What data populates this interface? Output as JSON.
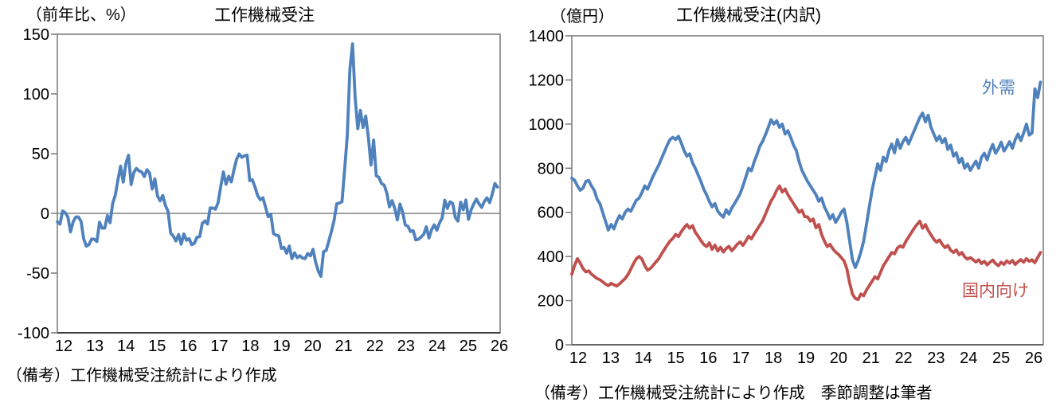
{
  "figure": {
    "background": "#ffffff"
  },
  "chart_data": [
    {
      "type": "line",
      "title": "工作機械受注",
      "unit_label": "（前年比、%）",
      "footnote": "（備考）工作機械受注統計により作成",
      "x_tick_labels": [
        "12",
        "13",
        "14",
        "15",
        "16",
        "17",
        "18",
        "19",
        "20",
        "21",
        "22",
        "23",
        "24",
        "25",
        "26"
      ],
      "x_frequency": "monthly",
      "x_range": [
        "2012-01",
        "2025-12"
      ],
      "ylim": [
        -100,
        150
      ],
      "y_ticks": [
        150,
        100,
        50,
        0,
        -50,
        -100
      ],
      "zero_line": true,
      "grid": false,
      "legend_position": "none",
      "axis_color": "#808080",
      "series": [
        {
          "name": "工作機械受注（前年比）",
          "color": "#4F81BD",
          "values": [
            -7,
            -9,
            2,
            0.5,
            -3,
            -15.5,
            -7,
            -3,
            -3,
            -6.7,
            -21.3,
            -27.5,
            -26.1,
            -21.5,
            -21.6,
            -23.6,
            -7.4,
            -12.4,
            -12.2,
            -1.9,
            -7.8,
            8.4,
            15.4,
            28.1,
            39.6,
            26.1,
            41.8,
            48.7,
            24.1,
            34.2,
            37.7,
            35.6,
            34.7,
            30.8,
            36.6,
            33.8,
            20.4,
            28.9,
            14.6,
            10.5,
            15,
            6.6,
            1.7,
            -16.5,
            -19.1,
            -23.1,
            -17.7,
            -25.8,
            -17.2,
            -22.5,
            -21.2,
            -26.3,
            -25,
            -19.9,
            -19.6,
            -8.4,
            -6.3,
            -8.9,
            4.6,
            4.4,
            3.5,
            9.1,
            22.6,
            34.7,
            24.4,
            31.1,
            26.3,
            36.3,
            45.3,
            49.8,
            46.9,
            48.3,
            48.8,
            27.4,
            28.1,
            22,
            14.9,
            11.4,
            13.1,
            5.1,
            -2.8,
            -0.7,
            -16.8,
            -18.3,
            -18.8,
            -29.3,
            -28.5,
            -33.4,
            -27.3,
            -37.9,
            -33,
            -37.1,
            -35.5,
            -37.4,
            -37.9,
            -33.6,
            -35.6,
            -30.1,
            -40.8,
            -48.3,
            -52.8,
            -32,
            -31.1,
            -23.2,
            -15,
            -5.9,
            8,
            8.7,
            9.7,
            36.7,
            65.1,
            120.8,
            141.9,
            96.6,
            70.9,
            86.2,
            71.9,
            81.5,
            64,
            40.5,
            61.4,
            31.6,
            30.2,
            25,
            23.7,
            17.1,
            5.5,
            10.7,
            4.3,
            -5.5,
            7.8,
            1,
            -9.7,
            -10.7,
            -15.2,
            -14.4,
            -22.2,
            -21.7,
            -19.8,
            -17.6,
            -11.2,
            -20.6,
            -13.6,
            -9.6,
            -14.1,
            -8,
            -3.8,
            11,
            4.2,
            9.7,
            8.4,
            -3.5,
            -6.5,
            9.4,
            3,
            11.2,
            -5,
            3,
            8,
            12,
            8,
            5,
            10,
            13,
            9,
            16,
            25,
            22
          ]
        }
      ]
    },
    {
      "type": "line",
      "title": "工作機械受注(内訳)",
      "unit_label": "（億円）",
      "footnote": "（備考）工作機械受注統計により作成　季節調整は筆者",
      "x_tick_labels": [
        "12",
        "13",
        "14",
        "15",
        "16",
        "17",
        "18",
        "19",
        "20",
        "21",
        "22",
        "23",
        "24",
        "25",
        "26"
      ],
      "x_frequency": "monthly",
      "x_range": [
        "2012-01",
        "2025-12"
      ],
      "ylim": [
        0,
        1400
      ],
      "y_ticks": [
        1400,
        1200,
        1000,
        800,
        600,
        400,
        200,
        0
      ],
      "zero_line": false,
      "grid": false,
      "legend_position": "inside",
      "axis_color": "#808080",
      "series": [
        {
          "name": "外需",
          "color": "#4F81BD",
          "values": [
            755,
            745,
            720,
            700,
            710,
            740,
            745,
            720,
            700,
            660,
            640,
            600,
            560,
            520,
            545,
            525,
            560,
            585,
            570,
            600,
            615,
            605,
            630,
            655,
            665,
            690,
            720,
            705,
            735,
            765,
            790,
            815,
            845,
            875,
            905,
            930,
            940,
            930,
            945,
            915,
            880,
            855,
            865,
            825,
            800,
            770,
            740,
            705,
            680,
            650,
            625,
            640,
            605,
            590,
            578,
            612,
            592,
            620,
            640,
            662,
            685,
            720,
            760,
            800,
            788,
            830,
            862,
            900,
            922,
            952,
            985,
            1020,
            1000,
            1015,
            985,
            1000,
            955,
            970,
            940,
            905,
            880,
            830,
            790,
            765,
            740,
            720,
            700,
            680,
            650,
            665,
            625,
            600,
            570,
            590,
            555,
            575,
            600,
            615,
            555,
            470,
            385,
            350,
            380,
            420,
            470,
            545,
            625,
            700,
            760,
            820,
            790,
            850,
            830,
            880,
            910,
            870,
            930,
            890,
            920,
            940,
            910,
            940,
            970,
            1000,
            1030,
            1050,
            1010,
            1040,
            985,
            955,
            925,
            945,
            915,
            935,
            885,
            905,
            855,
            870,
            825,
            845,
            800,
            820,
            790,
            812,
            832,
            800,
            850,
            868,
            838,
            878,
            908,
            868,
            888,
            918,
            878,
            898,
            920,
            890,
            930,
            955,
            925,
            960,
            1000,
            950,
            960,
            1160,
            1120,
            1190
          ]
        },
        {
          "name": "国内向け",
          "color": "#C0504D",
          "values": [
            320,
            360,
            390,
            370,
            345,
            330,
            335,
            320,
            310,
            300,
            295,
            285,
            275,
            268,
            278,
            272,
            266,
            276,
            288,
            300,
            318,
            342,
            368,
            390,
            400,
            388,
            358,
            338,
            346,
            360,
            376,
            390,
            412,
            432,
            452,
            470,
            482,
            500,
            490,
            512,
            530,
            545,
            528,
            540,
            510,
            492,
            472,
            455,
            445,
            462,
            432,
            452,
            425,
            442,
            420,
            436,
            446,
            426,
            440,
            456,
            466,
            450,
            470,
            492,
            480,
            502,
            522,
            542,
            562,
            592,
            622,
            652,
            672,
            700,
            720,
            692,
            706,
            680,
            660,
            640,
            620,
            600,
            610,
            580,
            580,
            560,
            570,
            530,
            545,
            500,
            470,
            445,
            455,
            435,
            420,
            410,
            395,
            380,
            345,
            280,
            230,
            210,
            205,
            230,
            222,
            248,
            268,
            288,
            308,
            298,
            328,
            358,
            378,
            398,
            418,
            412,
            438,
            448,
            442,
            468,
            488,
            508,
            528,
            545,
            560,
            528,
            545,
            518,
            498,
            478,
            465,
            475,
            455,
            440,
            450,
            428,
            418,
            430,
            408,
            418,
            398,
            388,
            395,
            385,
            375,
            385,
            368,
            378,
            362,
            374,
            384,
            368,
            358,
            374,
            364,
            380,
            370,
            382,
            364,
            376,
            386,
            374,
            390,
            378,
            385,
            372,
            395,
            418
          ]
        }
      ]
    }
  ]
}
